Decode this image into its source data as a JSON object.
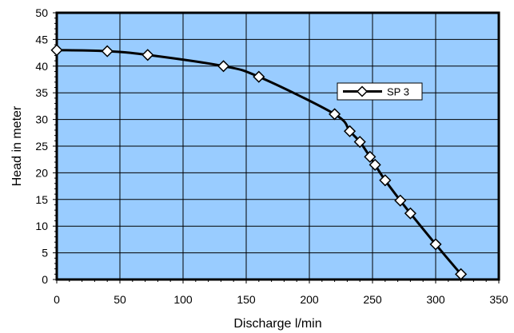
{
  "chart_data": {
    "type": "line",
    "xlabel": "Discharge l/min",
    "ylabel": "Head in meter",
    "xlim": [
      0,
      350
    ],
    "ylim": [
      0,
      50
    ],
    "xticks": [
      "0",
      "50",
      "100",
      "150",
      "200",
      "250",
      "300",
      "350"
    ],
    "yticks": [
      "0",
      "5",
      "10",
      "15",
      "20",
      "25",
      "30",
      "35",
      "40",
      "45",
      "50"
    ],
    "grid": true,
    "legend_position": "upper-right",
    "plot_background": "#99ccff",
    "series": [
      {
        "name": "SP 3",
        "color": "#000000",
        "marker": "diamond",
        "x": [
          0,
          40,
          72,
          132,
          160,
          220,
          232,
          240,
          248,
          252,
          260,
          272,
          280,
          300,
          320
        ],
        "y": [
          43,
          42.8,
          42.1,
          40,
          38,
          31,
          27.8,
          25.8,
          23,
          21.5,
          18.6,
          14.8,
          12.4,
          6.6,
          1
        ]
      }
    ]
  }
}
